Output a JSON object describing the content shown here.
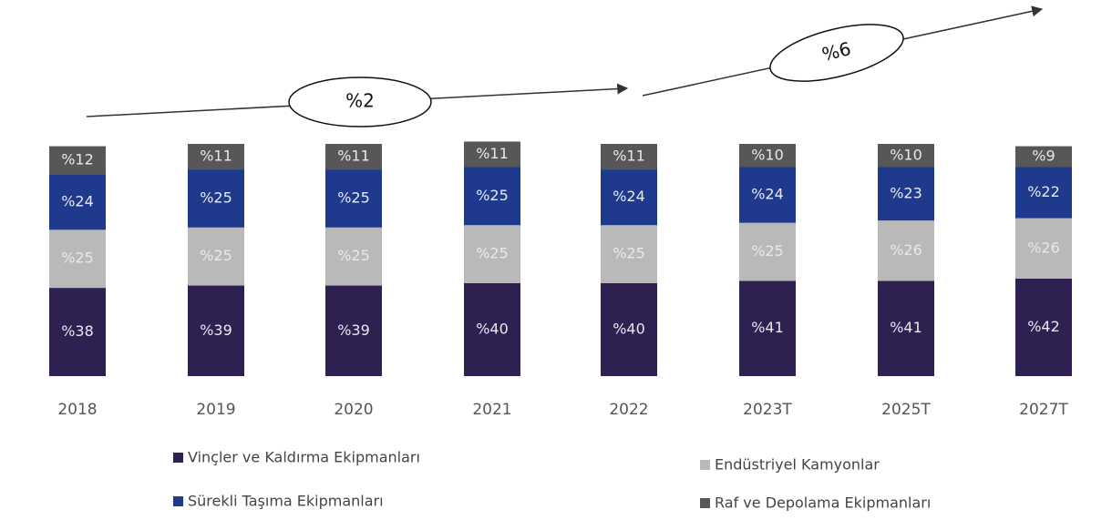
{
  "chart_data": {
    "type": "stacked_bar",
    "categories": [
      "2018",
      "2019",
      "2020",
      "2021",
      "2022",
      "2023T",
      "2025T",
      "2027T"
    ],
    "series": [
      {
        "name": "Vinçler ve Kaldırma Ekipmanları",
        "color": "#2e2152",
        "values": [
          38,
          39,
          39,
          40,
          40,
          41,
          41,
          42
        ],
        "value_labels": [
          "%38",
          "%39",
          "%39",
          "%40",
          "%40",
          "%41",
          "%41",
          "%42"
        ]
      },
      {
        "name": "Endüstriyel Kamyonlar",
        "color": "#b9b9b9",
        "values": [
          25,
          25,
          25,
          25,
          25,
          25,
          26,
          26
        ],
        "value_labels": [
          "%25",
          "%25",
          "%25",
          "%25",
          "%25",
          "%25",
          "%26",
          "%26"
        ]
      },
      {
        "name": "Sürekli Taşıma Ekipmanları",
        "color": "#1f3a8c",
        "values": [
          24,
          25,
          25,
          25,
          24,
          24,
          23,
          22
        ],
        "value_labels": [
          "%24",
          "%25",
          "%25",
          "%25",
          "%24",
          "%24",
          "%23",
          "%22"
        ]
      },
      {
        "name": "Raf ve Depolama Ekipmanları",
        "color": "#575757",
        "values": [
          12,
          11,
          11,
          11,
          11,
          10,
          10,
          9
        ],
        "value_labels": [
          "%12",
          "%11",
          "%11",
          "%11",
          "%11",
          "%10",
          "%10",
          "%9"
        ]
      }
    ],
    "ylim": [
      0,
      100
    ],
    "annotations": [
      "%2",
      "%6"
    ]
  }
}
